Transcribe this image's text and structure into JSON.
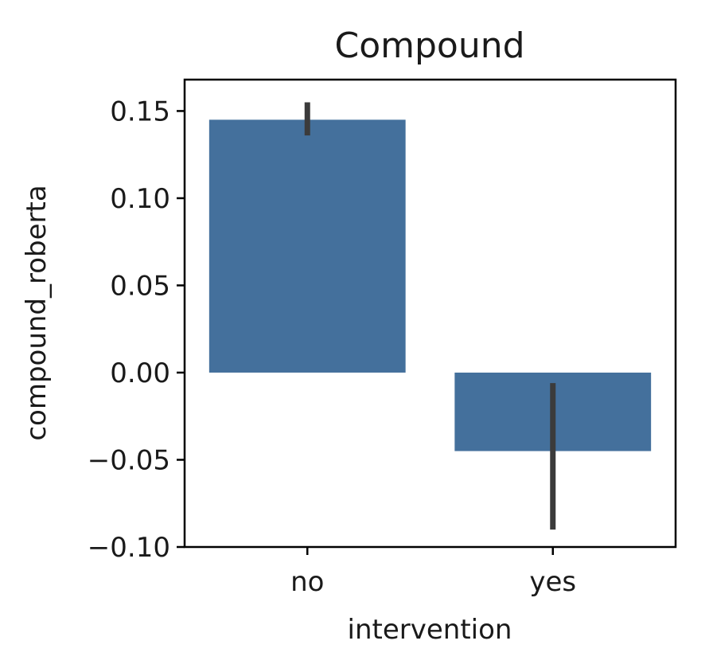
{
  "chart_data": {
    "type": "bar",
    "title": "Compound",
    "xlabel": "intervention",
    "ylabel": "compound_roberta",
    "categories": [
      "no",
      "yes"
    ],
    "values": [
      0.145,
      -0.045
    ],
    "error_bars": [
      [
        0.136,
        0.155
      ],
      [
        -0.09,
        -0.006
      ]
    ],
    "ylim": [
      -0.1,
      0.168
    ],
    "yticks": [
      -0.1,
      -0.05,
      0.0,
      0.05,
      0.1,
      0.15
    ],
    "ytick_labels": [
      "−0.10",
      "−0.05",
      "0.00",
      "0.05",
      "0.10",
      "0.15"
    ],
    "bar_color": "#44709c",
    "error_color": "#3b3b3b",
    "grid": false
  }
}
